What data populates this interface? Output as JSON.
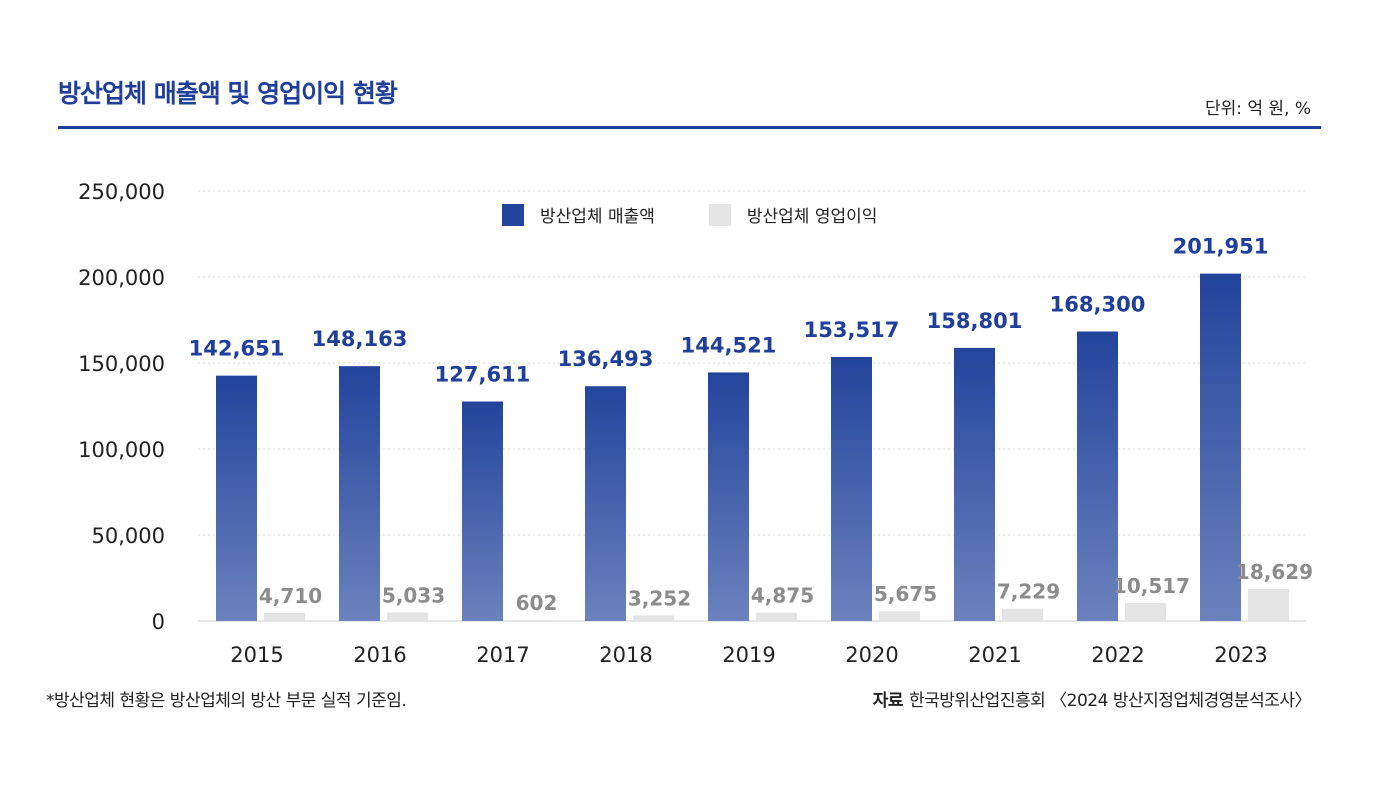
{
  "title": "방산업체 매출액 및 영업이익 현황",
  "unit": "단위: 억 원, %",
  "footnote": "*방산업체 현황은 방산업체의 방산 부문 실적 기준임.",
  "source": {
    "label": "자료",
    "text": "한국방위산업진흥회 〈2024 방산지정업체경영분석조사〉"
  },
  "colors": {
    "brand": "#1f3f9b",
    "sales_top": "#23449c",
    "sales_bottom": "#6b82bd",
    "profit": "#e4e4e4",
    "profit_label": "#8c8c8c",
    "grid": "#d8d8d8"
  },
  "chart_data": {
    "type": "bar",
    "categories": [
      "2015",
      "2016",
      "2017",
      "2018",
      "2019",
      "2020",
      "2021",
      "2022",
      "2023"
    ],
    "series": [
      {
        "name": "방산업체 매출액",
        "values": [
          142651,
          148163,
          127611,
          136493,
          144521,
          153517,
          158801,
          168300,
          201951
        ],
        "labels": [
          "142,651",
          "148,163",
          "127,611",
          "136,493",
          "144,521",
          "153,517",
          "158,801",
          "168,300",
          "201,951"
        ]
      },
      {
        "name": "방산업체 영업이익",
        "values": [
          4710,
          5033,
          602,
          3252,
          4875,
          5675,
          7229,
          10517,
          18629
        ],
        "labels": [
          "4,710",
          "5,033",
          "602",
          "3,252",
          "4,875",
          "5,675",
          "7,229",
          "10,517",
          "18,629"
        ]
      }
    ],
    "yticks": [
      "0",
      "50,000",
      "100,000",
      "150,000",
      "200,000",
      "250,000"
    ],
    "ytick_values": [
      0,
      50000,
      100000,
      150000,
      200000,
      250000
    ],
    "ylim": [
      0,
      250000
    ],
    "grid": true,
    "legend": "top-center"
  }
}
